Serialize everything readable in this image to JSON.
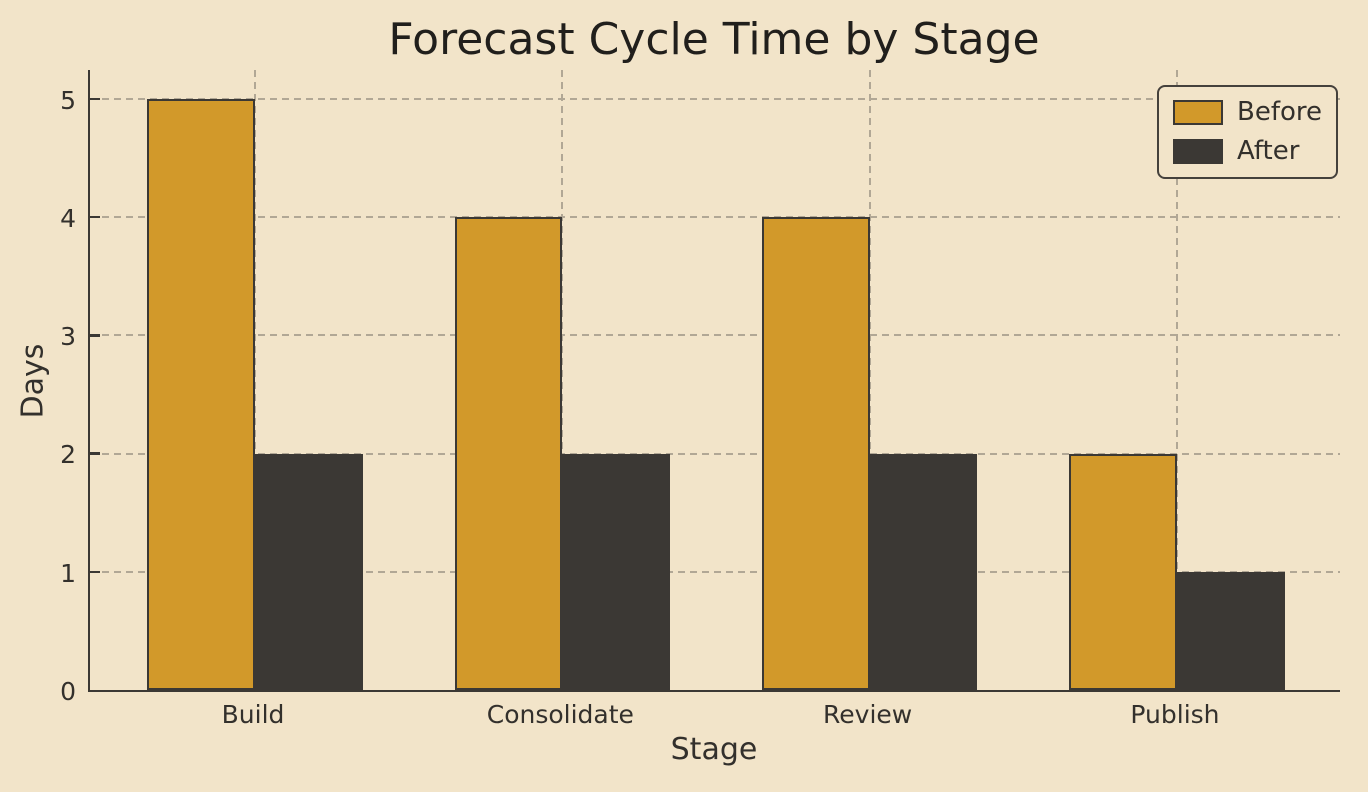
{
  "chart_data": {
    "type": "bar",
    "title": "Forecast Cycle Time by Stage",
    "xlabel": "Stage",
    "ylabel": "Days",
    "categories": [
      "Build",
      "Consolidate",
      "Review",
      "Publish"
    ],
    "series": [
      {
        "name": "Before",
        "color": "#D2992A",
        "values": [
          5,
          4,
          4,
          2
        ]
      },
      {
        "name": "After",
        "color": "#3B3834",
        "values": [
          2,
          2,
          2,
          1
        ]
      }
    ],
    "yticks": [
      0,
      1,
      2,
      3,
      4,
      5
    ],
    "ylim": [
      0,
      5.26
    ],
    "xlim": [
      -0.537,
      3.537
    ],
    "bar_width": 0.35,
    "grid": true,
    "grid_style": "dashed",
    "legend": {
      "position": "upper right",
      "entries": [
        "Before",
        "After"
      ]
    },
    "colors": {
      "background": "#F2E4C9",
      "grid": "#B1A795",
      "axis": "#3B3834",
      "text": "#33302C",
      "title_text": "#211F1C",
      "bar_edge": "#3B3834",
      "legend_border": "#45413C"
    }
  }
}
